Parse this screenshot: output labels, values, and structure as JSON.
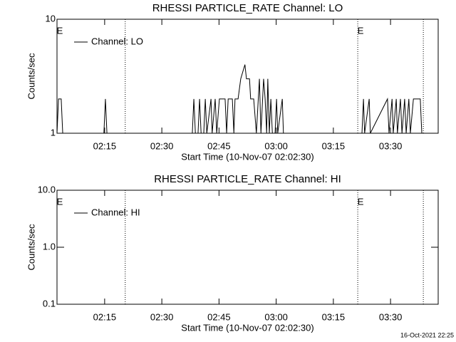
{
  "chart_data": [
    {
      "type": "line",
      "title": "RHESSI PARTICLE_RATE Channel: LO",
      "xlabel": "Start Time (10-Nov-07 02:02:30)",
      "ylabel": "Counts/sec",
      "log_y": true,
      "color": "#000000",
      "xlim": [
        122.5,
        222.5
      ],
      "xticks": [
        {
          "value": 135,
          "label": "02:15"
        },
        {
          "value": 150,
          "label": "02:30"
        },
        {
          "value": 165,
          "label": "02:45"
        },
        {
          "value": 180,
          "label": "03:00"
        },
        {
          "value": 195,
          "label": "03:15"
        },
        {
          "value": 210,
          "label": "03:30"
        }
      ],
      "ylim": [
        1,
        10
      ],
      "yticks": [
        1,
        10
      ],
      "markers": [
        140.4,
        201.4,
        218.6
      ],
      "annotations": [
        "E",
        "E"
      ],
      "series": [
        {
          "name": "Channel: LO",
          "color": "#000000",
          "x": [
            122.5,
            122.9,
            123.6,
            124.0,
            134.8,
            135.2,
            135.6,
            158.0,
            158.4,
            158.8,
            159.5,
            159.9,
            160.3,
            161.0,
            161.4,
            161.8,
            162.9,
            163.2,
            164.0,
            164.4,
            165.1,
            166.6,
            167.0,
            167.4,
            168.5,
            168.9,
            169.2,
            170.0,
            170.7,
            171.8,
            172.2,
            173.0,
            173.3,
            174.1,
            174.8,
            175.6,
            176.0,
            176.7,
            177.1,
            177.5,
            177.8,
            178.2,
            178.6,
            179.0,
            179.7,
            180.1,
            180.4,
            181.6,
            181.9,
            202.5,
            202.9,
            203.2,
            204.4,
            204.7,
            209.2,
            209.6,
            210.4,
            210.7,
            211.5,
            211.8,
            212.6,
            213.0,
            213.7,
            214.1,
            214.8,
            215.2,
            216.0,
            217.8,
            218.2
          ],
          "values": [
            1,
            2,
            2,
            1,
            1,
            2,
            1,
            1,
            2,
            1,
            1,
            2,
            1,
            1,
            2,
            1,
            2,
            1,
            2,
            1,
            2,
            2,
            1,
            2,
            2,
            1,
            2,
            2,
            3,
            4,
            3,
            3,
            2,
            2,
            1,
            3,
            1,
            3,
            2,
            1,
            3,
            1,
            2,
            1,
            1,
            2,
            1,
            2,
            1,
            1,
            2,
            1,
            2,
            1,
            2,
            1,
            2,
            1,
            2,
            1,
            2,
            1,
            2,
            1,
            2,
            1,
            2,
            2,
            1
          ]
        }
      ]
    },
    {
      "type": "line",
      "title": "RHESSI PARTICLE_RATE Channel: HI",
      "xlabel": "Start Time (10-Nov-07 02:02:30)",
      "ylabel": "Counts/sec",
      "log_y": true,
      "color": "#000000",
      "xlim": [
        122.5,
        222.5
      ],
      "xticks": [
        {
          "value": 135,
          "label": "02:15"
        },
        {
          "value": 150,
          "label": "02:30"
        },
        {
          "value": 165,
          "label": "02:45"
        },
        {
          "value": 180,
          "label": "03:00"
        },
        {
          "value": 195,
          "label": "03:15"
        },
        {
          "value": 210,
          "label": "03:30"
        }
      ],
      "ylim": [
        0.1,
        10
      ],
      "yticks": [
        0.1,
        {
          "value": 1,
          "label": "1.0"
        },
        {
          "value": 10,
          "label": "10.0"
        }
      ],
      "markers": [
        140.4,
        201.4,
        218.6
      ],
      "annotations": [
        "E",
        "E"
      ],
      "series": [
        {
          "name": "Channel: HI",
          "color": "#000000",
          "x": [],
          "values": []
        }
      ]
    }
  ],
  "footer": "16-Oct-2021 22:25"
}
